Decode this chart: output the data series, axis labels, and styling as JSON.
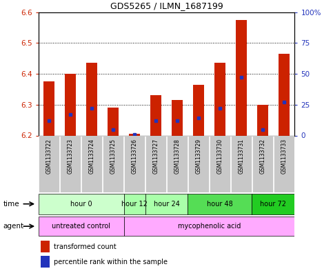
{
  "title": "GDS5265 / ILMN_1687199",
  "samples": [
    "GSM1133722",
    "GSM1133723",
    "GSM1133724",
    "GSM1133725",
    "GSM1133726",
    "GSM1133727",
    "GSM1133728",
    "GSM1133729",
    "GSM1133730",
    "GSM1133731",
    "GSM1133732",
    "GSM1133733"
  ],
  "transformed_counts": [
    6.375,
    6.4,
    6.435,
    6.29,
    6.205,
    6.33,
    6.315,
    6.365,
    6.435,
    6.575,
    6.3,
    6.465
  ],
  "percentile_ranks": [
    12,
    17,
    22,
    5,
    1,
    12,
    12,
    14,
    22,
    47,
    5,
    27
  ],
  "ylim_left": [
    6.2,
    6.6
  ],
  "ylim_right": [
    0,
    100
  ],
  "bar_bottom": 6.2,
  "bar_color": "#cc2200",
  "dot_color": "#2233bb",
  "time_defs": [
    {
      "label": "hour 0",
      "start": 0,
      "end": 3,
      "color": "#ccffcc"
    },
    {
      "label": "hour 12",
      "start": 4,
      "end": 4,
      "color": "#aaffaa"
    },
    {
      "label": "hour 24",
      "start": 5,
      "end": 6,
      "color": "#aaffaa"
    },
    {
      "label": "hour 48",
      "start": 7,
      "end": 9,
      "color": "#55dd55"
    },
    {
      "label": "hour 72",
      "start": 10,
      "end": 11,
      "color": "#22cc22"
    }
  ],
  "agent_defs": [
    {
      "label": "untreated control",
      "start": 0,
      "end": 3,
      "color": "#ffaaff"
    },
    {
      "label": "mycophenolic acid",
      "start": 4,
      "end": 11,
      "color": "#ffaaff"
    }
  ],
  "sample_bg_color": "#c8c8c8",
  "left_axis_color": "#cc2200",
  "right_axis_color": "#2233bb",
  "bar_width": 0.5
}
